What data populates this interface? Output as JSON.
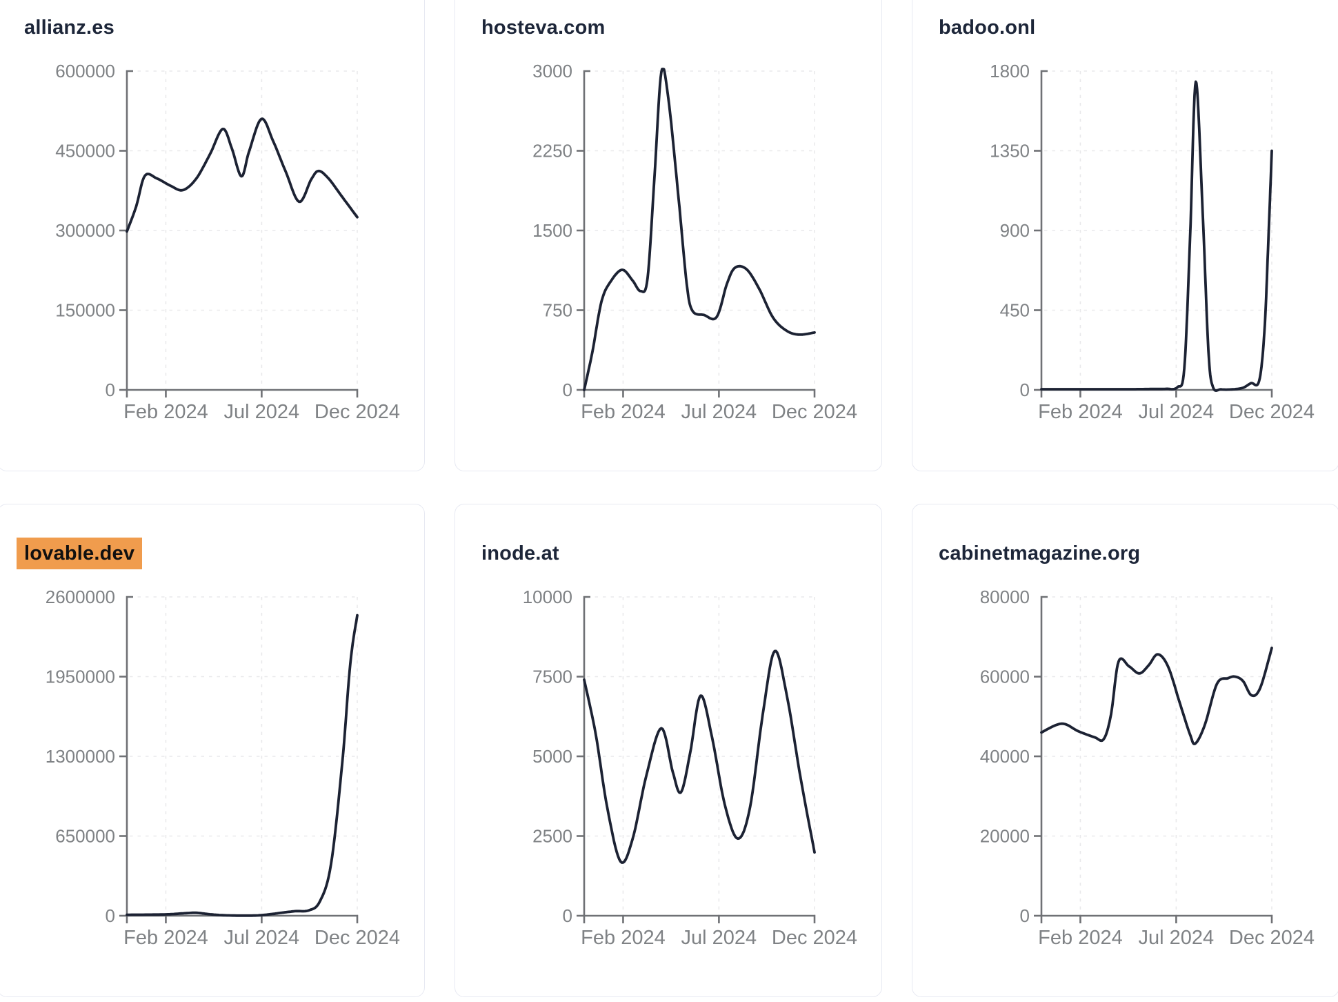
{
  "colors": {
    "line": "#1c2233",
    "title": "#1d2639",
    "axis": "#6f7175",
    "tick_label": "#7f8285",
    "grid": "#e9e9eb",
    "highlight_bg": "#f09c4d",
    "highlight_text": "#101010",
    "card_border": "#e7e9f2",
    "background": "#ffffff"
  },
  "chart_data": [
    {
      "type": "line",
      "title": "allianz.es",
      "highlighted": false,
      "ylim": [
        0,
        600000
      ],
      "y_ticks": [
        0,
        150000,
        300000,
        450000,
        600000
      ],
      "x_ticks": {
        "labels": [
          "Feb 2024",
          "Jul 2024",
          "Dec 2024"
        ],
        "positions": [
          0.169,
          0.585,
          1.0
        ]
      },
      "points": [
        [
          0,
          298000
        ],
        [
          0.04,
          345000
        ],
        [
          0.078,
          403000
        ],
        [
          0.13,
          398000
        ],
        [
          0.19,
          384000
        ],
        [
          0.243,
          376000
        ],
        [
          0.3,
          397000
        ],
        [
          0.36,
          443000
        ],
        [
          0.416,
          491000
        ],
        [
          0.455,
          455000
        ],
        [
          0.497,
          402000
        ],
        [
          0.53,
          448000
        ],
        [
          0.584,
          510000
        ],
        [
          0.635,
          468000
        ],
        [
          0.69,
          410000
        ],
        [
          0.748,
          354000
        ],
        [
          0.8,
          396000
        ],
        [
          0.832,
          412000
        ],
        [
          0.875,
          398000
        ],
        [
          0.93,
          366000
        ],
        [
          1,
          325000
        ]
      ]
    },
    {
      "type": "line",
      "title": "hosteva.com",
      "highlighted": false,
      "ylim": [
        0,
        3000
      ],
      "y_ticks": [
        0,
        750,
        1500,
        2250,
        3000
      ],
      "x_ticks": {
        "labels": [
          "Feb 2024",
          "Jul 2024",
          "Dec 2024"
        ],
        "positions": [
          0.169,
          0.585,
          1.0
        ]
      },
      "points": [
        [
          0,
          0
        ],
        [
          0.035,
          350
        ],
        [
          0.075,
          830
        ],
        [
          0.115,
          1020
        ],
        [
          0.165,
          1130
        ],
        [
          0.21,
          1030
        ],
        [
          0.245,
          930
        ],
        [
          0.275,
          1050
        ],
        [
          0.305,
          2000
        ],
        [
          0.335,
          2990
        ],
        [
          0.365,
          2750
        ],
        [
          0.41,
          1800
        ],
        [
          0.445,
          1000
        ],
        [
          0.47,
          745
        ],
        [
          0.52,
          705
        ],
        [
          0.575,
          685
        ],
        [
          0.62,
          1000
        ],
        [
          0.655,
          1150
        ],
        [
          0.705,
          1135
        ],
        [
          0.76,
          950
        ],
        [
          0.82,
          680
        ],
        [
          0.88,
          555
        ],
        [
          0.935,
          520
        ],
        [
          1,
          540
        ]
      ]
    },
    {
      "type": "line",
      "title": "badoo.onl",
      "highlighted": false,
      "ylim": [
        0,
        1800
      ],
      "y_ticks": [
        0,
        450,
        900,
        1350,
        1800
      ],
      "x_ticks": {
        "labels": [
          "Feb 2024",
          "Jul 2024",
          "Dec 2024"
        ],
        "positions": [
          0.169,
          0.585,
          1.0
        ]
      },
      "points": [
        [
          0,
          4
        ],
        [
          0.08,
          4
        ],
        [
          0.16,
          4
        ],
        [
          0.24,
          4
        ],
        [
          0.32,
          4
        ],
        [
          0.4,
          4
        ],
        [
          0.48,
          5
        ],
        [
          0.54,
          6
        ],
        [
          0.59,
          15
        ],
        [
          0.62,
          120
        ],
        [
          0.645,
          850
        ],
        [
          0.67,
          1740
        ],
        [
          0.7,
          1000
        ],
        [
          0.725,
          220
        ],
        [
          0.745,
          15
        ],
        [
          0.78,
          3
        ],
        [
          0.83,
          3
        ],
        [
          0.875,
          12
        ],
        [
          0.91,
          38
        ],
        [
          0.945,
          50
        ],
        [
          0.968,
          330
        ],
        [
          0.985,
          840
        ],
        [
          1,
          1350
        ]
      ]
    },
    {
      "type": "line",
      "title": "lovable.dev",
      "highlighted": true,
      "ylim": [
        0,
        2600000
      ],
      "y_ticks": [
        0,
        650000,
        1300000,
        1950000,
        2600000
      ],
      "x_ticks": {
        "labels": [
          "Feb 2024",
          "Jul 2024",
          "Dec 2024"
        ],
        "positions": [
          0.169,
          0.585,
          1.0
        ]
      },
      "points": [
        [
          0,
          8000
        ],
        [
          0.09,
          9000
        ],
        [
          0.17,
          11000
        ],
        [
          0.25,
          20000
        ],
        [
          0.3,
          24000
        ],
        [
          0.36,
          12000
        ],
        [
          0.42,
          4000
        ],
        [
          0.5,
          1000
        ],
        [
          0.57,
          3000
        ],
        [
          0.63,
          14000
        ],
        [
          0.67,
          24000
        ],
        [
          0.73,
          37000
        ],
        [
          0.79,
          44000
        ],
        [
          0.838,
          118000
        ],
        [
          0.886,
          420000
        ],
        [
          0.935,
          1250000
        ],
        [
          0.97,
          2060000
        ],
        [
          1,
          2450000
        ]
      ]
    },
    {
      "type": "line",
      "title": "inode.at",
      "highlighted": false,
      "ylim": [
        0,
        10000
      ],
      "y_ticks": [
        0,
        2500,
        5000,
        7500,
        10000
      ],
      "x_ticks": {
        "labels": [
          "Feb 2024",
          "Jul 2024",
          "Dec 2024"
        ],
        "positions": [
          0.169,
          0.585,
          1.0
        ]
      },
      "points": [
        [
          0,
          7400
        ],
        [
          0.05,
          5700
        ],
        [
          0.1,
          3400
        ],
        [
          0.158,
          1700
        ],
        [
          0.21,
          2400
        ],
        [
          0.27,
          4400
        ],
        [
          0.335,
          5880
        ],
        [
          0.385,
          4500
        ],
        [
          0.42,
          3870
        ],
        [
          0.46,
          5100
        ],
        [
          0.505,
          6900
        ],
        [
          0.555,
          5600
        ],
        [
          0.61,
          3500
        ],
        [
          0.667,
          2420
        ],
        [
          0.72,
          3400
        ],
        [
          0.775,
          6300
        ],
        [
          0.827,
          8300
        ],
        [
          0.88,
          6900
        ],
        [
          0.94,
          4300
        ],
        [
          1,
          1990
        ]
      ]
    },
    {
      "type": "line",
      "title": "cabinetmagazine.org",
      "highlighted": false,
      "ylim": [
        0,
        80000
      ],
      "y_ticks": [
        0,
        20000,
        40000,
        60000,
        80000
      ],
      "x_ticks": {
        "labels": [
          "Feb 2024",
          "Jul 2024",
          "Dec 2024"
        ],
        "positions": [
          0.169,
          0.585,
          1.0
        ]
      },
      "points": [
        [
          0,
          46000
        ],
        [
          0.088,
          48200
        ],
        [
          0.16,
          46300
        ],
        [
          0.23,
          44800
        ],
        [
          0.27,
          44300
        ],
        [
          0.302,
          50500
        ],
        [
          0.335,
          63800
        ],
        [
          0.38,
          62600
        ],
        [
          0.425,
          60800
        ],
        [
          0.465,
          62800
        ],
        [
          0.505,
          65600
        ],
        [
          0.55,
          62500
        ],
        [
          0.6,
          53500
        ],
        [
          0.645,
          45500
        ],
        [
          0.668,
          43200
        ],
        [
          0.71,
          48000
        ],
        [
          0.762,
          58200
        ],
        [
          0.81,
          59600
        ],
        [
          0.84,
          60000
        ],
        [
          0.875,
          58900
        ],
        [
          0.912,
          55300
        ],
        [
          0.95,
          57200
        ],
        [
          1,
          67200
        ]
      ]
    }
  ]
}
